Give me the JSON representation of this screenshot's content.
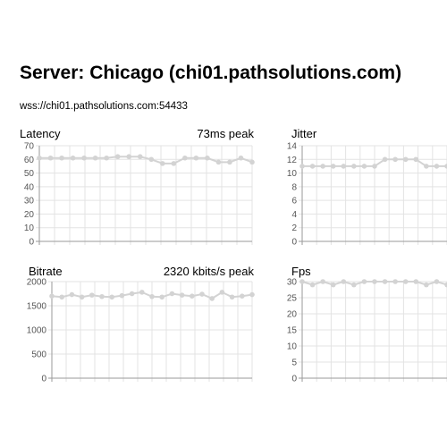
{
  "header": {
    "title": "Server: Chicago (chi01.pathsolutions.com)",
    "url": "wss://chi01.pathsolutions.com:54433"
  },
  "colors": {
    "line": "#d3d3d3",
    "grid": "#e3e3e3",
    "axis": "#9a9a9a"
  },
  "chart_data": [
    {
      "type": "line",
      "title": "Latency",
      "peak_label": "73ms peak",
      "ylim": [
        0,
        70
      ],
      "y_ticks": [
        0,
        10,
        20,
        30,
        40,
        50,
        60,
        70
      ],
      "values": [
        61,
        61,
        61,
        61,
        61,
        61,
        61,
        62,
        62,
        62,
        60,
        57,
        57,
        61,
        61,
        61,
        58,
        58,
        61,
        58
      ]
    },
    {
      "type": "line",
      "title": "Jitter",
      "peak_label": "",
      "ylim": [
        0,
        14
      ],
      "y_ticks": [
        0,
        2,
        4,
        6,
        8,
        10,
        12,
        14
      ],
      "values": [
        11,
        11,
        11,
        11,
        11,
        11,
        11,
        11,
        12,
        12,
        12,
        12,
        11,
        11,
        11
      ]
    },
    {
      "type": "line",
      "title": "Bitrate",
      "peak_label": "2320 kbits/s peak",
      "ylim": [
        0,
        2000
      ],
      "y_ticks": [
        0,
        500,
        1000,
        1500,
        2000
      ],
      "values": [
        1700,
        1680,
        1730,
        1680,
        1720,
        1690,
        1680,
        1710,
        1750,
        1780,
        1690,
        1680,
        1750,
        1720,
        1700,
        1740,
        1650,
        1780,
        1680,
        1700,
        1730
      ]
    },
    {
      "type": "line",
      "title": "Fps",
      "peak_label": "",
      "ylim": [
        0,
        30
      ],
      "y_ticks": [
        0,
        5,
        10,
        15,
        20,
        25,
        30
      ],
      "values": [
        30,
        29,
        30,
        29,
        30,
        29,
        30,
        30,
        30,
        30,
        30,
        30,
        29,
        30,
        29
      ]
    }
  ]
}
